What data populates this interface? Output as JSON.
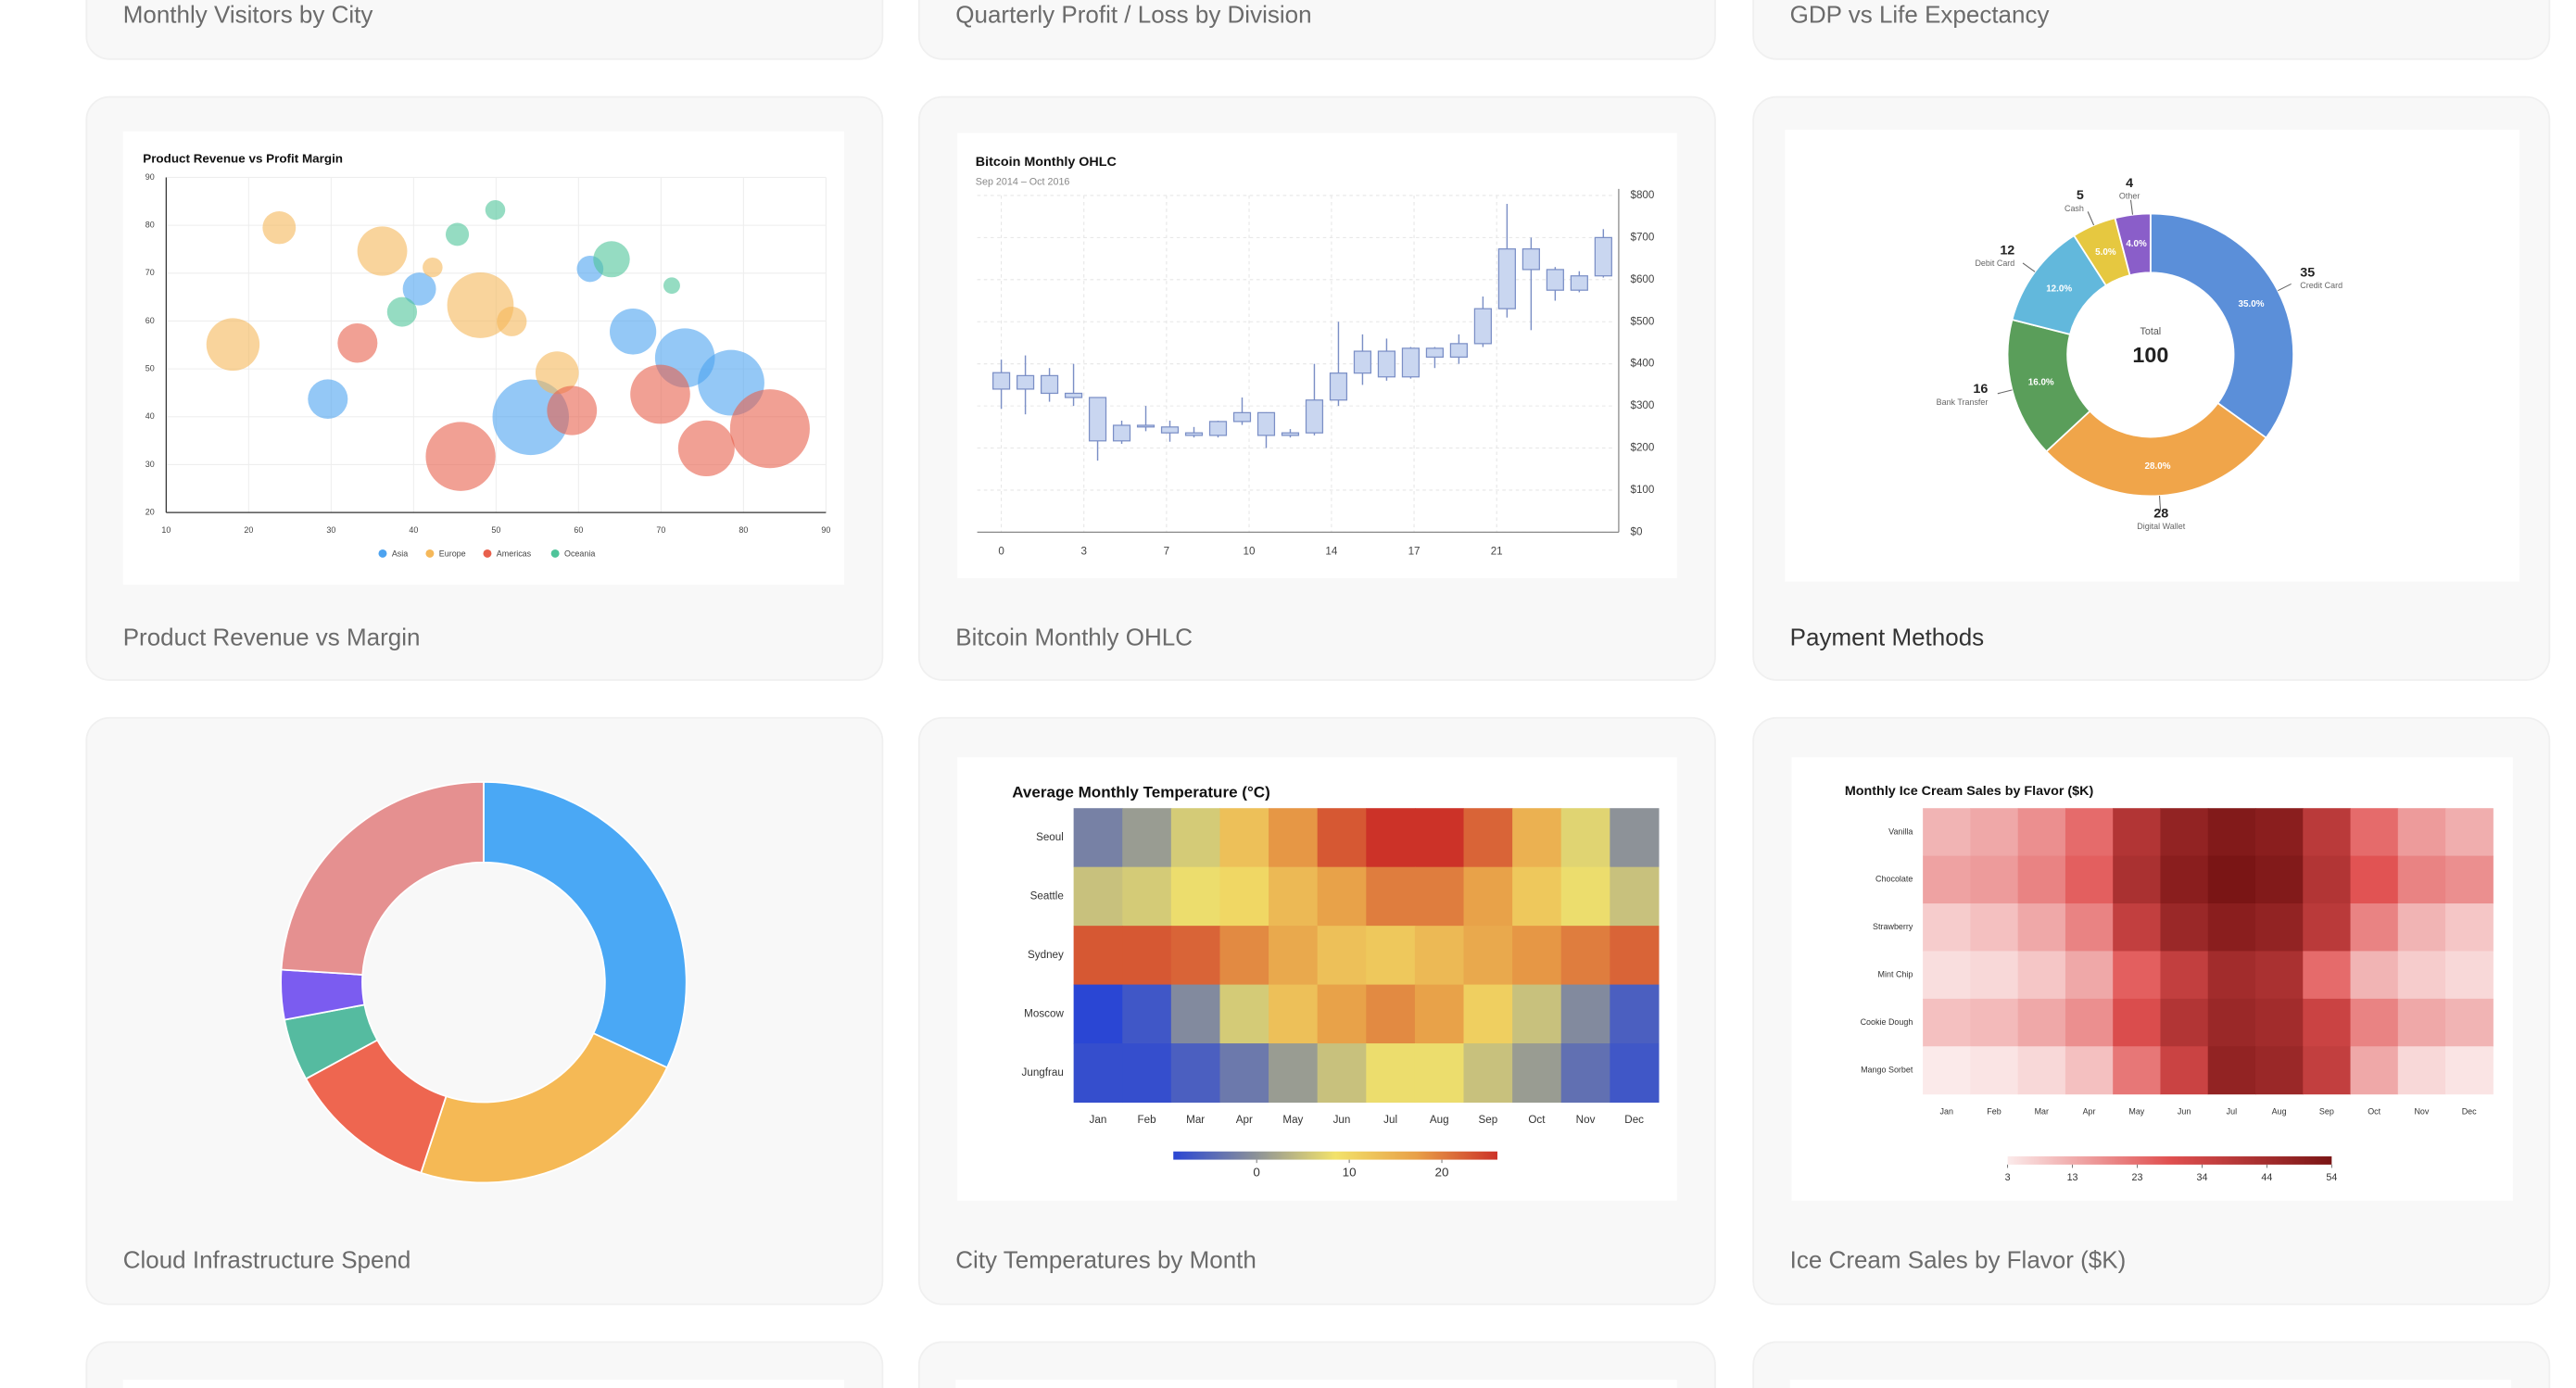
{
  "cards": [
    {
      "title": "Monthly Visitors by City"
    },
    {
      "title": "Quarterly Profit / Loss by Division"
    },
    {
      "title": "GDP vs Life Expectancy"
    },
    {
      "title": "Product Revenue vs Margin",
      "chart_data": {
        "type": "bubble",
        "title": "Product Revenue vs Profit Margin",
        "xlim": [
          10,
          90
        ],
        "xticks": [
          10,
          20,
          30,
          40,
          50,
          60,
          70,
          80,
          90
        ],
        "ylim": [
          20,
          90
        ],
        "yticks": [
          20,
          30,
          40,
          50,
          60,
          70,
          80,
          90
        ],
        "grid": true,
        "series": [
          {
            "name": "Asia",
            "color": "#4da3f0",
            "x": [
              29.6,
              40.7,
              61.4,
              66.6,
              72.9,
              78.5,
              54.2
            ],
            "values": [
              43.7,
              66.7,
              70.9,
              57.8,
              52.3,
              47.1,
              39.9
            ],
            "sizes": [
              12,
              10,
              8,
              14,
              18,
              20,
              23
            ]
          },
          {
            "name": "Europe",
            "color": "#f5b85a",
            "x": [
              23.7,
              36.2,
              42.3,
              48.1,
              51.9,
              18.1,
              57.4
            ],
            "values": [
              79.5,
              74.6,
              71.2,
              63.3,
              59.9,
              55.1,
              49.2
            ],
            "sizes": [
              10,
              15,
              6,
              20,
              9,
              16,
              13
            ]
          },
          {
            "name": "Americas",
            "color": "#e8604c",
            "x": [
              33.2,
              45.7,
              59.2,
              69.9,
              75.5,
              83.2
            ],
            "values": [
              55.4,
              31.7,
              41.3,
              44.7,
              33.4,
              37.5
            ],
            "sizes": [
              12,
              21,
              15,
              18,
              17,
              24
            ]
          },
          {
            "name": "Oceania",
            "color": "#4fc49a",
            "x": [
              45.3,
              49.9,
              38.6,
              64.0,
              71.3
            ],
            "values": [
              78.1,
              83.2,
              61.9,
              72.9,
              67.4
            ],
            "sizes": [
              7,
              6,
              9,
              11,
              5
            ]
          }
        ]
      }
    },
    {
      "title": "Bitcoin Monthly OHLC",
      "chart_data": {
        "type": "candlestick",
        "title": "Bitcoin Monthly OHLC",
        "subtitle": "Sep 2014 – Oct 2016",
        "color": "#c9d6f0",
        "edge_color": "#7b8fc6",
        "grid": true,
        "x": [
          0,
          1,
          2,
          3,
          4,
          5,
          6,
          7,
          8,
          9,
          10,
          11,
          12,
          13,
          14,
          15,
          16,
          17,
          18,
          19,
          20,
          21,
          22,
          23,
          24,
          25
        ],
        "open": [
          379,
          340,
          372,
          330,
          320,
          217,
          254,
          250,
          236,
          230,
          263,
          284,
          230,
          236,
          314,
          378,
          430,
          369,
          437,
          416,
          448,
          531,
          673,
          624,
          575,
          609
        ],
        "high": [
          410,
          420,
          390,
          400,
          320,
          265,
          300,
          265,
          250,
          265,
          320,
          285,
          245,
          400,
          500,
          470,
          460,
          440,
          440,
          470,
          560,
          780,
          700,
          630,
          620,
          720
        ],
        "low": [
          293,
          280,
          310,
          300,
          170,
          210,
          240,
          215,
          225,
          225,
          255,
          200,
          225,
          230,
          300,
          350,
          360,
          365,
          390,
          400,
          440,
          510,
          480,
          550,
          570,
          605
        ],
        "close": [
          340,
          372,
          330,
          320,
          217,
          254,
          250,
          236,
          230,
          263,
          284,
          230,
          236,
          314,
          378,
          430,
          369,
          437,
          416,
          448,
          531,
          673,
          624,
          575,
          609,
          700
        ],
        "xlim": [
          -1,
          25.5
        ],
        "xticks": [
          0,
          {
            "value": 3.43,
            "label": "3"
          },
          {
            "value": 6.86,
            "label": "7"
          },
          {
            "value": 10.29,
            "label": "10"
          },
          {
            "value": 13.71,
            "label": "14"
          },
          {
            "value": 17.14,
            "label": "17"
          },
          {
            "value": 20.57,
            "label": "21"
          }
        ],
        "ylim": [
          0,
          800
        ],
        "yticks": [
          {
            "value": 0,
            "label": "$0"
          },
          {
            "value": 100,
            "label": "$100"
          },
          {
            "value": 200,
            "label": "$200"
          },
          {
            "value": 300,
            "label": "$300"
          },
          {
            "value": 400,
            "label": "$400"
          },
          {
            "value": 500,
            "label": "$500"
          },
          {
            "value": 600,
            "label": "$600"
          },
          {
            "value": 700,
            "label": "$700"
          },
          {
            "value": 800,
            "label": "$800"
          }
        ]
      }
    },
    {
      "title": "Payment Methods",
      "chart_data": {
        "type": "pie",
        "center_label": "Total",
        "center_value": 100,
        "categories": [
          "Credit Card",
          "Digital Wallet",
          "Bank Transfer",
          "Debit Card",
          "Cash",
          "Other"
        ],
        "values": [
          35,
          28,
          16,
          12,
          5,
          4
        ],
        "value_labels": [
          "35.0%",
          "28.0%",
          "16.0%",
          "12.0%",
          "5.0%",
          "4.0%"
        ],
        "colors": [
          "#5b8fd9",
          "#f0a54a",
          "#5a9e5a",
          "#62b8dc",
          "#e6c840",
          "#8a5ec9"
        ]
      }
    },
    {
      "title": "Cloud Infrastructure Spend",
      "chart_data": {
        "type": "pie",
        "values": [
          32,
          23,
          12,
          5,
          4,
          24
        ],
        "colors": [
          "#4aa8f5",
          "#f5b955",
          "#ee6650",
          "#55bba0",
          "#7b5cf0",
          "#e59090"
        ]
      }
    },
    {
      "title": "City Temperatures by Month",
      "chart_data": {
        "type": "heatmap",
        "title": "Average Monthly Temperature (°C)",
        "rows": [
          "Seoul",
          "Seattle",
          "Sydney",
          "Moscow",
          "Jungfrau"
        ],
        "columns": [
          "Jan",
          "Feb",
          "Mar",
          "Apr",
          "May",
          "Jun",
          "Jul",
          "Aug",
          "Sep",
          "Oct",
          "Nov",
          "Dec"
        ],
        "z": [
          [
            -2,
            1,
            6,
            13,
            18,
            23,
            26,
            26,
            22,
            15,
            7,
            0
          ],
          [
            5,
            6,
            8,
            10,
            14,
            17,
            20,
            20,
            17,
            12,
            8,
            5
          ],
          [
            23,
            23,
            22,
            19,
            16,
            13,
            12,
            14,
            16,
            18,
            20,
            22
          ],
          [
            -9,
            -7,
            -1,
            6,
            13,
            17,
            19,
            17,
            11,
            5,
            -1,
            -6
          ],
          [
            -8,
            -8,
            -6,
            -3,
            1,
            5,
            8,
            8,
            5,
            1,
            -4,
            -7
          ]
        ],
        "colorscale": [
          "#2a46d4",
          "#8a9099",
          "#f2e26a",
          "#e8a048",
          "#cc3228"
        ],
        "zlim": [
          -9,
          26
        ],
        "zticks": [
          0,
          10,
          20
        ]
      }
    },
    {
      "title": "Ice Cream Sales by Flavor ($K)",
      "chart_data": {
        "type": "heatmap",
        "title": "Monthly Ice Cream Sales by Flavor ($K)",
        "rows": [
          "Vanilla",
          "Chocolate",
          "Strawberry",
          "Mint Chip",
          "Cookie Dough",
          "Mango Sorbet"
        ],
        "columns": [
          "Jan",
          "Feb",
          "Mar",
          "Apr",
          "May",
          "Jun",
          "Jul",
          "Aug",
          "Sep",
          "Oct",
          "Nov",
          "Dec"
        ],
        "z": [
          [
            12,
            14,
            18,
            24,
            40,
            48,
            52,
            50,
            38,
            24,
            16,
            13
          ],
          [
            15,
            16,
            20,
            26,
            42,
            50,
            54,
            52,
            40,
            28,
            20,
            18
          ],
          [
            8,
            10,
            14,
            20,
            36,
            46,
            50,
            48,
            38,
            20,
            12,
            9
          ],
          [
            5,
            6,
            9,
            14,
            26,
            36,
            44,
            42,
            24,
            12,
            8,
            6
          ],
          [
            10,
            11,
            14,
            18,
            30,
            40,
            46,
            44,
            34,
            20,
            14,
            12
          ],
          [
            3,
            4,
            6,
            10,
            22,
            34,
            48,
            46,
            36,
            14,
            6,
            4
          ]
        ],
        "colorscale": [
          "#fbeaea",
          "#e05050",
          "#7a1515"
        ],
        "zlim": [
          3,
          54
        ],
        "zticks": [
          3,
          {
            "value": 13.2,
            "label": "13"
          },
          {
            "value": 23.4,
            "label": "23"
          },
          {
            "value": 33.6,
            "label": "34"
          },
          {
            "value": 43.8,
            "label": "44"
          },
          54
        ]
      }
    }
  ]
}
